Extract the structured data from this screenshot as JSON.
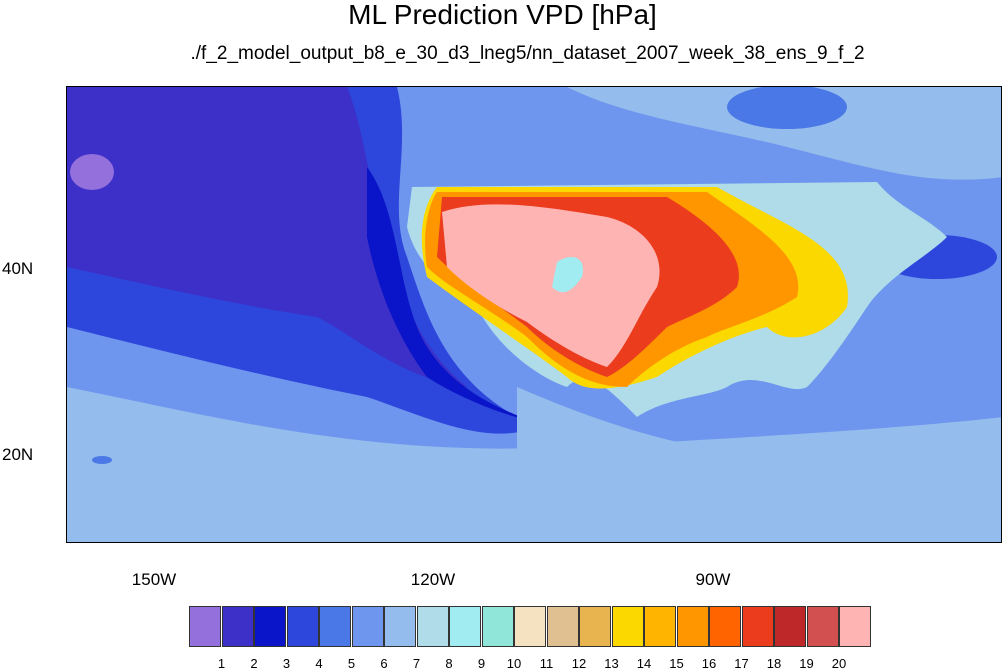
{
  "title": "ML Prediction VPD [hPa]",
  "subtitle": "./f_2_model_output_b8_e_30_d3_lneg5/nn_dataset_2007_week_38_ens_9_f_2",
  "axes": {
    "x_ticks": [
      "150W",
      "120W",
      "90W"
    ],
    "y_ticks": [
      "40N",
      "20N"
    ]
  },
  "colorbar": {
    "colors": [
      "#9370db",
      "#3c30c8",
      "#0a14c8",
      "#2d46dc",
      "#4a78e6",
      "#6e96ee",
      "#94bcec",
      "#afdce8",
      "#a0ecf0",
      "#90e6d8",
      "#f4e2c0",
      "#e0c090",
      "#e8b450",
      "#fad800",
      "#ffb400",
      "#ff9600",
      "#ff6400",
      "#eb3c1e",
      "#be2828",
      "#d25050",
      "#ffb4b4"
    ],
    "labels": [
      "1",
      "2",
      "3",
      "4",
      "5",
      "6",
      "7",
      "8",
      "9",
      "10",
      "11",
      "12",
      "13",
      "14",
      "15",
      "16",
      "17",
      "18",
      "19",
      "20"
    ]
  }
}
